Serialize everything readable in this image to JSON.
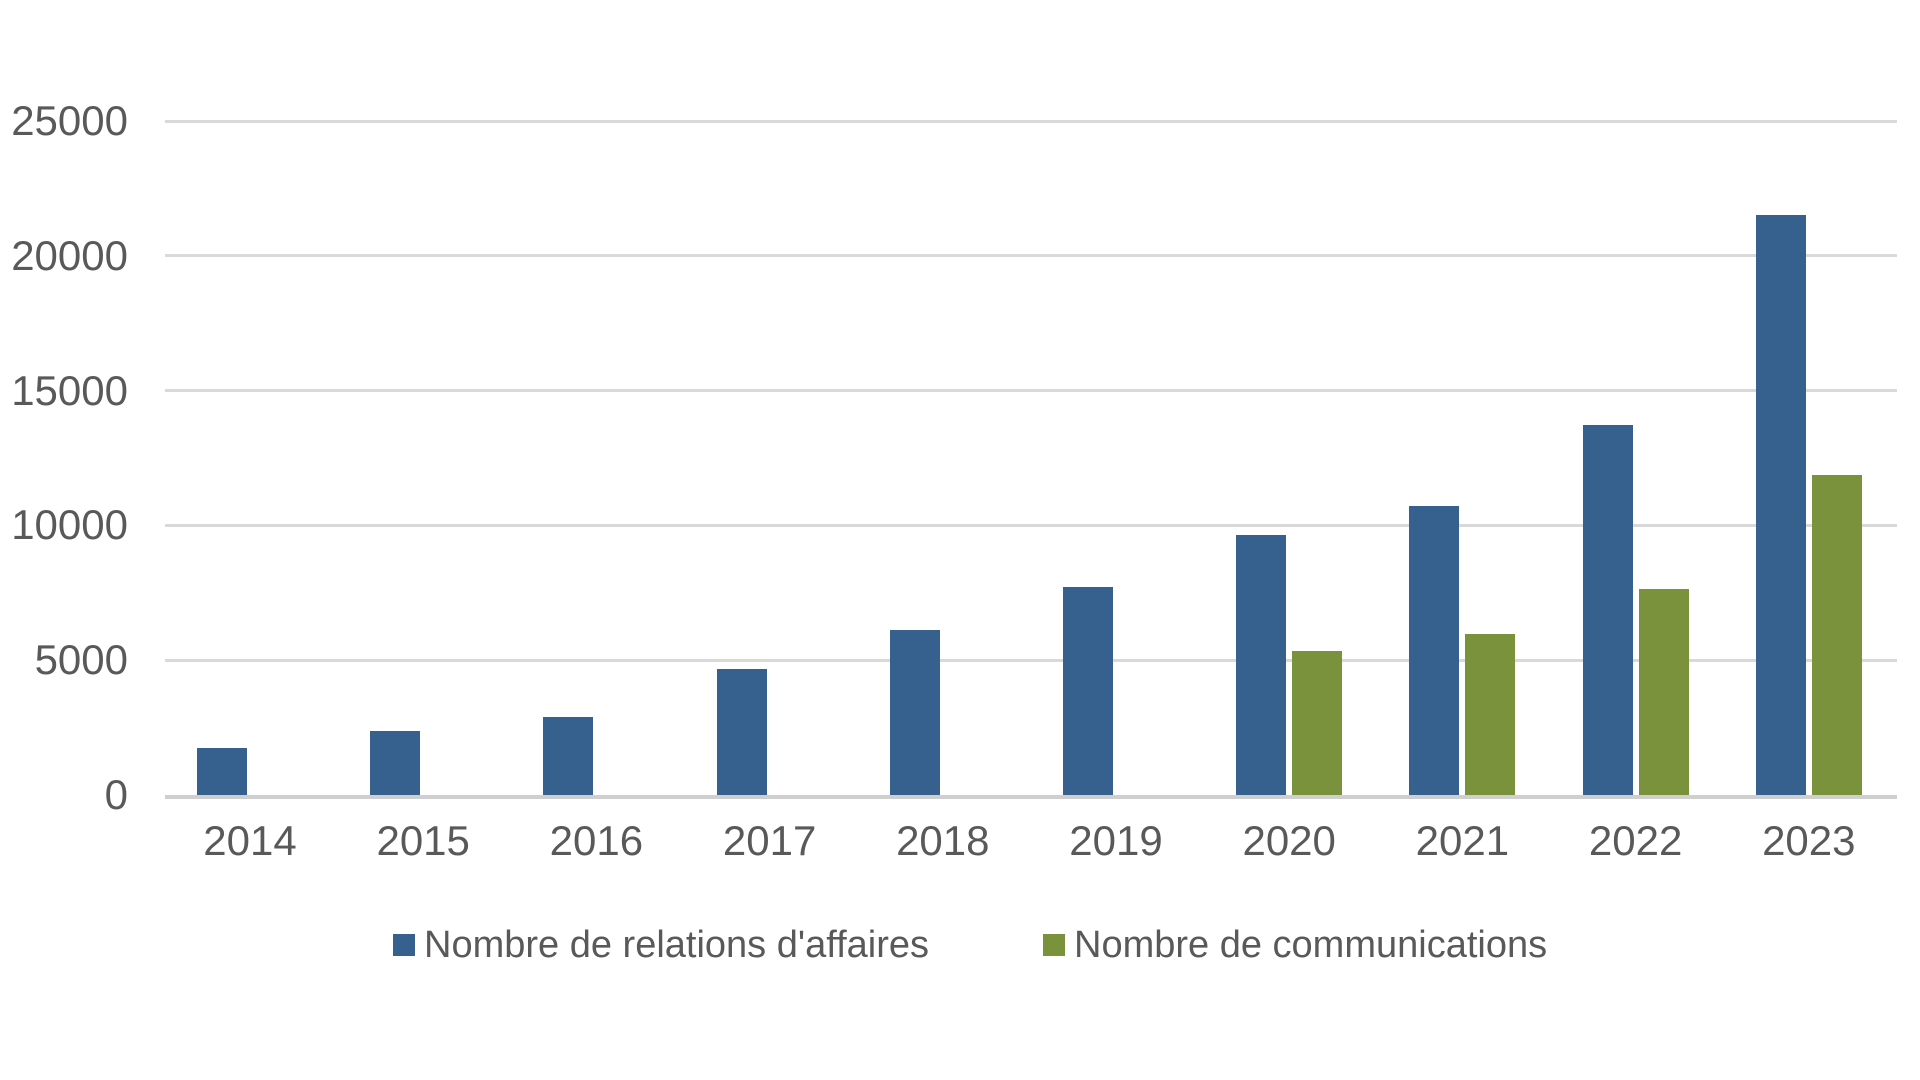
{
  "chart_data": {
    "type": "bar",
    "title": "",
    "xlabel": "",
    "ylabel": "",
    "categories": [
      "2014",
      "2015",
      "2016",
      "2017",
      "2018",
      "2019",
      "2020",
      "2021",
      "2022",
      "2023"
    ],
    "series": [
      {
        "name": "Nombre de relations d'affaires",
        "color": "#36618E",
        "values": [
          1753,
          2367,
          2909,
          4684,
          6126,
          7705,
          9646,
          10714,
          13716,
          21508
        ]
      },
      {
        "name": "Nombre de communications",
        "color": "#7A923C",
        "values": [
          null,
          null,
          null,
          null,
          null,
          null,
          5334,
          5964,
          7639,
          11876
        ]
      }
    ],
    "y_ticks": [
      0,
      5000,
      10000,
      15000,
      20000,
      25000
    ],
    "ylim": [
      0,
      25000
    ],
    "grid": "horizontal",
    "gridline_color": "#d9d9d9",
    "axis_text_color": "#595959",
    "legend_position": "bottom",
    "background_color": "#ffffff"
  }
}
